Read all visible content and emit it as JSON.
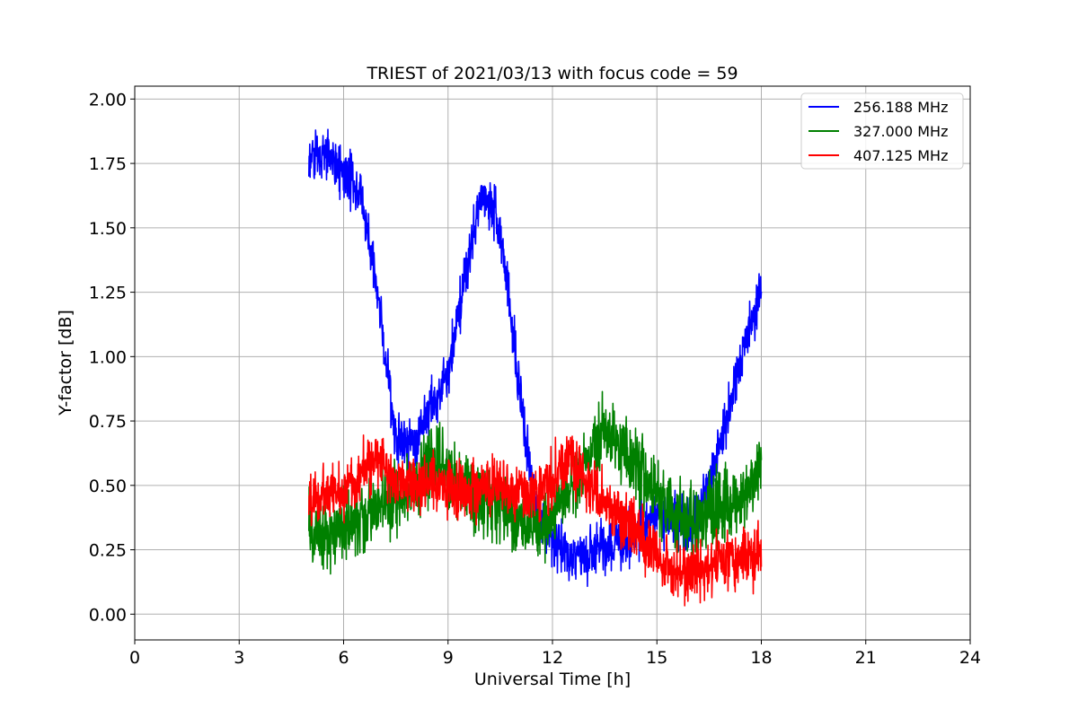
{
  "chart_data": {
    "type": "line",
    "title": "TRIEST of 2021/03/13 with focus code = 59",
    "xlabel": "Universal Time [h]",
    "ylabel": "Y-factor [dB]",
    "xlim": [
      0,
      24
    ],
    "ylim": [
      -0.1,
      2.05
    ],
    "xticks": [
      0,
      3,
      6,
      9,
      12,
      15,
      18,
      21,
      24
    ],
    "xtick_labels": [
      "0",
      "3",
      "6",
      "9",
      "12",
      "15",
      "18",
      "21",
      "24"
    ],
    "yticks": [
      0.0,
      0.25,
      0.5,
      0.75,
      1.0,
      1.25,
      1.5,
      1.75,
      2.0
    ],
    "ytick_labels": [
      "0.00",
      "0.25",
      "0.50",
      "0.75",
      "1.00",
      "1.25",
      "1.50",
      "1.75",
      "2.00"
    ],
    "grid": true,
    "legend_position": "upper-right",
    "series": [
      {
        "name": "256.188 MHz",
        "color": "#0000ff",
        "noise": 0.05,
        "x": [
          5.0,
          5.5,
          6.0,
          6.5,
          7.0,
          7.5,
          8.0,
          8.5,
          9.0,
          9.5,
          10.0,
          10.5,
          11.0,
          11.5,
          12.0,
          12.5,
          13.0,
          13.5,
          14.0,
          14.5,
          15.0,
          15.5,
          16.0,
          16.5,
          17.0,
          17.5,
          18.0
        ],
        "y": [
          1.76,
          1.8,
          1.7,
          1.63,
          1.22,
          0.68,
          0.66,
          0.8,
          0.92,
          1.32,
          1.64,
          1.52,
          0.93,
          0.4,
          0.28,
          0.22,
          0.24,
          0.26,
          0.28,
          0.32,
          0.4,
          0.36,
          0.34,
          0.5,
          0.76,
          1.05,
          1.25
        ]
      },
      {
        "name": "327.000 MHz",
        "color": "#008000",
        "noise": 0.07,
        "x": [
          5.0,
          5.5,
          6.0,
          6.5,
          7.0,
          7.5,
          8.0,
          8.5,
          9.0,
          9.5,
          10.0,
          10.5,
          11.0,
          11.5,
          12.0,
          12.5,
          13.0,
          13.5,
          14.0,
          14.5,
          15.0,
          15.5,
          16.0,
          16.5,
          17.0,
          17.5,
          18.0
        ],
        "y": [
          0.33,
          0.3,
          0.34,
          0.38,
          0.42,
          0.45,
          0.5,
          0.58,
          0.56,
          0.5,
          0.45,
          0.41,
          0.36,
          0.33,
          0.38,
          0.48,
          0.6,
          0.72,
          0.66,
          0.56,
          0.45,
          0.38,
          0.35,
          0.4,
          0.42,
          0.45,
          0.62
        ]
      },
      {
        "name": "407.125 MHz",
        "color": "#ff0000",
        "noise": 0.055,
        "x": [
          5.0,
          5.5,
          6.0,
          6.5,
          7.0,
          7.5,
          8.0,
          8.5,
          9.0,
          9.5,
          10.0,
          10.5,
          11.0,
          11.5,
          12.0,
          12.5,
          13.0,
          13.5,
          14.0,
          14.5,
          15.0,
          15.5,
          16.0,
          16.5,
          17.0,
          17.5,
          18.0
        ],
        "y": [
          0.44,
          0.46,
          0.48,
          0.55,
          0.6,
          0.52,
          0.5,
          0.5,
          0.49,
          0.48,
          0.49,
          0.48,
          0.47,
          0.48,
          0.52,
          0.6,
          0.5,
          0.43,
          0.38,
          0.33,
          0.2,
          0.17,
          0.16,
          0.18,
          0.21,
          0.24,
          0.22
        ]
      }
    ]
  }
}
